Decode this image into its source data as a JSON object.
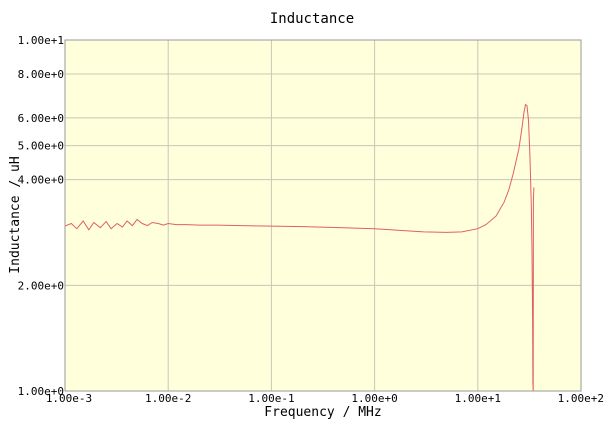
{
  "chart_data": {
    "type": "line",
    "title": "Inductance",
    "xlabel": "Frequency / MHz",
    "ylabel": "Inductance / uH",
    "x_scale": "log",
    "y_scale": "log",
    "xlim": [
      0.001,
      100
    ],
    "ylim": [
      1,
      10
    ],
    "grid": true,
    "colors": {
      "plot_bg": "#ffffdc",
      "grid": "#c8c8b4",
      "series": "#e06060"
    },
    "x_ticks": [
      {
        "value": 0.001,
        "label": "1.00e-3"
      },
      {
        "value": 0.01,
        "label": "1.00e-2"
      },
      {
        "value": 0.1,
        "label": "1.00e-1"
      },
      {
        "value": 1,
        "label": "1.00e+0"
      },
      {
        "value": 10,
        "label": "1.00e+1"
      },
      {
        "value": 100,
        "label": "1.00e+2"
      }
    ],
    "y_ticks": [
      {
        "value": 1,
        "label": "1.00e+0"
      },
      {
        "value": 2,
        "label": "2.00e+0"
      },
      {
        "value": 4,
        "label": "4.00e+0"
      },
      {
        "value": 5,
        "label": "5.00e+0"
      },
      {
        "value": 6,
        "label": "6.00e+0"
      },
      {
        "value": 8,
        "label": "8.00e+0"
      },
      {
        "value": 10,
        "label": "1.00e+1"
      }
    ],
    "series": [
      {
        "x": [
          0.001,
          0.00115,
          0.0013,
          0.0015,
          0.0017,
          0.0019,
          0.0022,
          0.0025,
          0.0028,
          0.0032,
          0.0036,
          0.004,
          0.0045,
          0.005,
          0.0056,
          0.0063,
          0.007,
          0.008,
          0.009,
          0.01,
          0.012,
          0.015,
          0.02,
          0.03,
          0.05,
          0.1,
          0.2,
          0.5,
          1,
          2,
          3,
          5,
          7,
          10,
          12,
          15,
          18,
          20,
          22,
          25,
          27,
          28,
          29,
          30,
          31,
          32,
          33,
          33.5,
          34,
          34.2,
          34.4,
          34.6,
          35
        ],
        "y": [
          2.95,
          3.0,
          2.9,
          3.05,
          2.88,
          3.02,
          2.92,
          3.04,
          2.9,
          3.0,
          2.93,
          3.05,
          2.96,
          3.08,
          3.0,
          2.96,
          3.02,
          3.0,
          2.97,
          3.0,
          2.98,
          2.98,
          2.97,
          2.97,
          2.96,
          2.95,
          2.94,
          2.92,
          2.9,
          2.86,
          2.84,
          2.83,
          2.84,
          2.9,
          2.98,
          3.15,
          3.45,
          3.75,
          4.15,
          4.9,
          5.7,
          6.2,
          6.55,
          6.5,
          5.9,
          4.7,
          3.4,
          2.5,
          1.6,
          1.05,
          1.0,
          3.5,
          3.8
        ]
      }
    ]
  }
}
